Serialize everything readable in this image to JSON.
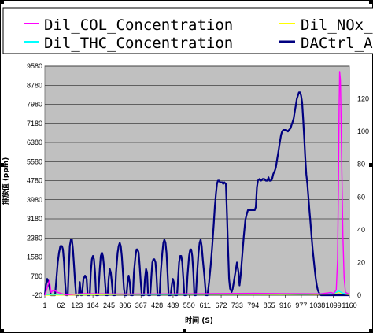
{
  "colors": {
    "plot_bg": "#c0c0c0",
    "grid": "#000000",
    "dil_col": "#ff00ff",
    "dil_nox": "#ffff00",
    "dil_thc": "#00ffff",
    "dactrl": "#000080"
  },
  "chart_data": {
    "type": "line",
    "title": "",
    "xlabel": "时间 (S)",
    "ylabel": "排放值 (ppm)",
    "legend_position": "top",
    "grid": true,
    "x": [
      1,
      62,
      123,
      184,
      245,
      306,
      367,
      428,
      489,
      550,
      611,
      672,
      733,
      794,
      855,
      916,
      977,
      1038,
      1099,
      1160
    ],
    "x_tick_labels": [
      "1",
      "62",
      "123",
      "184",
      "245",
      "306",
      "367",
      "428",
      "489",
      "550",
      "611",
      "672",
      "733",
      "794",
      "855",
      "916",
      "977",
      "1038",
      "1099",
      "1160"
    ],
    "xlim": [
      1,
      1160
    ],
    "ylim": [
      -20,
      9580
    ],
    "y_ticks": [
      -20,
      780,
      1580,
      2380,
      3180,
      3980,
      4780,
      5580,
      6380,
      7180,
      7980,
      8780,
      9580
    ],
    "y_tick_labels": [
      "-20",
      "780",
      "1580",
      "2380",
      "3180",
      "3980",
      "4780",
      "5580",
      "6380",
      "7180",
      "7980",
      "8780",
      "9580"
    ],
    "y2lim": [
      0,
      140
    ],
    "y2_ticks": [
      0,
      20,
      40,
      60,
      80,
      100,
      120
    ],
    "y2_tick_labels": [
      "0",
      "20",
      "40",
      "60",
      "80",
      "100",
      "120"
    ],
    "series": [
      {
        "name": "Dil_COL_Concentration",
        "axis": "left",
        "points": [
          [
            1,
            -20
          ],
          [
            10,
            300
          ],
          [
            18,
            600
          ],
          [
            25,
            100
          ],
          [
            35,
            200
          ],
          [
            50,
            100
          ],
          [
            80,
            0
          ],
          [
            150,
            50
          ],
          [
            300,
            30
          ],
          [
            550,
            40
          ],
          [
            800,
            60
          ],
          [
            900,
            50
          ],
          [
            1050,
            40
          ],
          [
            1080,
            80
          ],
          [
            1090,
            100
          ],
          [
            1100,
            50
          ],
          [
            1110,
            200
          ],
          [
            1115,
            1500
          ],
          [
            1118,
            4500
          ],
          [
            1121,
            8000
          ],
          [
            1123,
            9350
          ],
          [
            1126,
            9000
          ],
          [
            1130,
            6000
          ],
          [
            1135,
            2500
          ],
          [
            1140,
            700
          ],
          [
            1145,
            100
          ],
          [
            1160,
            20
          ]
        ]
      },
      {
        "name": "Dil_NOx_",
        "axis": "left",
        "points": [
          [
            1,
            -20
          ],
          [
            300,
            10
          ],
          [
            600,
            15
          ],
          [
            900,
            10
          ],
          [
            1100,
            30
          ],
          [
            1120,
            120
          ],
          [
            1130,
            40
          ],
          [
            1160,
            10
          ]
        ]
      },
      {
        "name": "Dil_THC_Concentration",
        "axis": "left",
        "points": [
          [
            1,
            10
          ],
          [
            200,
            30
          ],
          [
            400,
            20
          ],
          [
            600,
            30
          ],
          [
            800,
            25
          ],
          [
            1000,
            30
          ],
          [
            1100,
            60
          ],
          [
            1120,
            150
          ],
          [
            1135,
            60
          ],
          [
            1160,
            30
          ]
        ]
      },
      {
        "name": "DACtrl_A",
        "axis": "right",
        "points": [
          [
            1,
            0
          ],
          [
            5,
            6
          ],
          [
            10,
            10
          ],
          [
            15,
            8
          ],
          [
            20,
            4
          ],
          [
            24,
            0
          ],
          [
            40,
            0
          ],
          [
            45,
            10
          ],
          [
            50,
            20
          ],
          [
            55,
            26
          ],
          [
            60,
            30
          ],
          [
            66,
            30
          ],
          [
            70,
            28
          ],
          [
            74,
            20
          ],
          [
            78,
            8
          ],
          [
            82,
            0
          ],
          [
            88,
            0
          ],
          [
            92,
            16
          ],
          [
            96,
            30
          ],
          [
            100,
            34
          ],
          [
            104,
            34
          ],
          [
            108,
            28
          ],
          [
            112,
            18
          ],
          [
            116,
            8
          ],
          [
            120,
            0
          ],
          [
            130,
            0
          ],
          [
            134,
            8
          ],
          [
            138,
            0
          ],
          [
            142,
            0
          ],
          [
            148,
            10
          ],
          [
            154,
            12
          ],
          [
            160,
            10
          ],
          [
            164,
            0
          ],
          [
            172,
            0
          ],
          [
            176,
            14
          ],
          [
            180,
            22
          ],
          [
            184,
            24
          ],
          [
            188,
            22
          ],
          [
            192,
            14
          ],
          [
            196,
            0
          ],
          [
            204,
            0
          ],
          [
            210,
            16
          ],
          [
            214,
            24
          ],
          [
            218,
            26
          ],
          [
            222,
            24
          ],
          [
            226,
            18
          ],
          [
            230,
            8
          ],
          [
            234,
            0
          ],
          [
            240,
            0
          ],
          [
            244,
            10
          ],
          [
            248,
            16
          ],
          [
            252,
            14
          ],
          [
            256,
            8
          ],
          [
            260,
            0
          ],
          [
            268,
            0
          ],
          [
            272,
            14
          ],
          [
            278,
            26
          ],
          [
            282,
            30
          ],
          [
            286,
            32
          ],
          [
            290,
            30
          ],
          [
            294,
            24
          ],
          [
            298,
            14
          ],
          [
            302,
            4
          ],
          [
            306,
            0
          ],
          [
            312,
            0
          ],
          [
            316,
            8
          ],
          [
            320,
            12
          ],
          [
            324,
            8
          ],
          [
            328,
            0
          ],
          [
            336,
            0
          ],
          [
            340,
            14
          ],
          [
            346,
            24
          ],
          [
            350,
            28
          ],
          [
            354,
            28
          ],
          [
            358,
            26
          ],
          [
            362,
            18
          ],
          [
            366,
            8
          ],
          [
            370,
            0
          ],
          [
            378,
            0
          ],
          [
            382,
            10
          ],
          [
            386,
            16
          ],
          [
            390,
            14
          ],
          [
            394,
            0
          ],
          [
            402,
            0
          ],
          [
            406,
            10
          ],
          [
            410,
            20
          ],
          [
            414,
            22
          ],
          [
            418,
            22
          ],
          [
            422,
            20
          ],
          [
            426,
            12
          ],
          [
            430,
            0
          ],
          [
            438,
            0
          ],
          [
            442,
            14
          ],
          [
            448,
            26
          ],
          [
            452,
            32
          ],
          [
            456,
            34
          ],
          [
            460,
            32
          ],
          [
            464,
            26
          ],
          [
            468,
            14
          ],
          [
            472,
            0
          ],
          [
            480,
            0
          ],
          [
            484,
            6
          ],
          [
            488,
            10
          ],
          [
            492,
            8
          ],
          [
            496,
            0
          ],
          [
            504,
            0
          ],
          [
            508,
            10
          ],
          [
            512,
            20
          ],
          [
            516,
            24
          ],
          [
            520,
            24
          ],
          [
            524,
            20
          ],
          [
            528,
            10
          ],
          [
            532,
            0
          ],
          [
            540,
            0
          ],
          [
            544,
            12
          ],
          [
            550,
            24
          ],
          [
            554,
            28
          ],
          [
            558,
            28
          ],
          [
            562,
            24
          ],
          [
            566,
            14
          ],
          [
            570,
            0
          ],
          [
            576,
            0
          ],
          [
            580,
            12
          ],
          [
            586,
            26
          ],
          [
            590,
            32
          ],
          [
            594,
            34
          ],
          [
            598,
            30
          ],
          [
            602,
            22
          ],
          [
            608,
            12
          ],
          [
            614,
            0
          ],
          [
            620,
            0
          ],
          [
            626,
            8
          ],
          [
            632,
            18
          ],
          [
            638,
            30
          ],
          [
            644,
            44
          ],
          [
            648,
            54
          ],
          [
            652,
            62
          ],
          [
            656,
            68
          ],
          [
            660,
            70
          ],
          [
            664,
            70
          ],
          [
            668,
            69
          ],
          [
            672,
            69
          ],
          [
            676,
            69
          ],
          [
            680,
            68
          ],
          [
            684,
            69
          ],
          [
            690,
            68
          ],
          [
            694,
            50
          ],
          [
            698,
            30
          ],
          [
            702,
            10
          ],
          [
            706,
            4
          ],
          [
            712,
            2
          ],
          [
            716,
            4
          ],
          [
            720,
            8
          ],
          [
            724,
            12
          ],
          [
            728,
            16
          ],
          [
            732,
            20
          ],
          [
            738,
            14
          ],
          [
            742,
            6
          ],
          [
            746,
            12
          ],
          [
            752,
            24
          ],
          [
            758,
            36
          ],
          [
            764,
            46
          ],
          [
            770,
            50
          ],
          [
            774,
            52
          ],
          [
            778,
            52
          ],
          [
            782,
            52
          ],
          [
            786,
            52
          ],
          [
            790,
            52
          ],
          [
            796,
            52
          ],
          [
            800,
            52
          ],
          [
            804,
            54
          ],
          [
            808,
            66
          ],
          [
            812,
            70
          ],
          [
            818,
            71
          ],
          [
            824,
            70
          ],
          [
            830,
            71
          ],
          [
            836,
            71
          ],
          [
            842,
            70
          ],
          [
            848,
            70
          ],
          [
            852,
            72
          ],
          [
            856,
            70
          ],
          [
            862,
            70
          ],
          [
            866,
            71
          ],
          [
            870,
            74
          ],
          [
            876,
            76
          ],
          [
            880,
            78
          ],
          [
            884,
            82
          ],
          [
            888,
            86
          ],
          [
            892,
            90
          ],
          [
            896,
            94
          ],
          [
            900,
            98
          ],
          [
            904,
            100
          ],
          [
            908,
            101
          ],
          [
            914,
            101
          ],
          [
            920,
            101
          ],
          [
            926,
            100
          ],
          [
            930,
            101
          ],
          [
            936,
            102
          ],
          [
            940,
            104
          ],
          [
            944,
            106
          ],
          [
            948,
            108
          ],
          [
            952,
            112
          ],
          [
            956,
            116
          ],
          [
            960,
            120
          ],
          [
            964,
            122
          ],
          [
            968,
            124
          ],
          [
            972,
            124
          ],
          [
            976,
            122
          ],
          [
            980,
            118
          ],
          [
            984,
            108
          ],
          [
            988,
            96
          ],
          [
            992,
            84
          ],
          [
            996,
            74
          ],
          [
            1000,
            68
          ],
          [
            1004,
            60
          ],
          [
            1008,
            52
          ],
          [
            1012,
            44
          ],
          [
            1016,
            36
          ],
          [
            1020,
            28
          ],
          [
            1024,
            22
          ],
          [
            1028,
            16
          ],
          [
            1032,
            10
          ],
          [
            1036,
            6
          ],
          [
            1040,
            3
          ],
          [
            1046,
            1
          ],
          [
            1052,
            0
          ],
          [
            1060,
            0
          ],
          [
            1070,
            0
          ],
          [
            1080,
            0
          ],
          [
            1090,
            0
          ],
          [
            1100,
            0
          ],
          [
            1110,
            0
          ],
          [
            1120,
            0
          ],
          [
            1130,
            0
          ],
          [
            1140,
            0
          ],
          [
            1150,
            0
          ],
          [
            1160,
            0
          ]
        ]
      }
    ]
  }
}
